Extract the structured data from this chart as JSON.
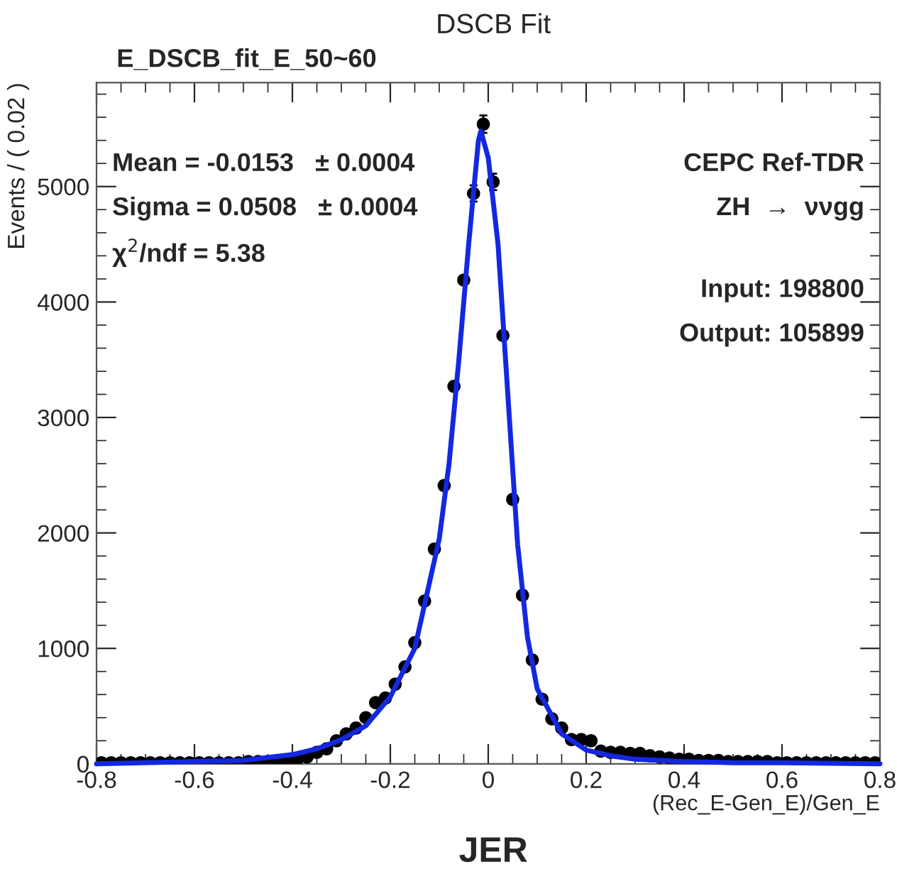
{
  "chart_data": {
    "type": "scatter",
    "title": "DSCB Fit",
    "subtitle": "E_DSCB_fit_E_50~60",
    "xlabel": "(Rec_E-Gen_E)/Gen_E",
    "ylabel": "Events / ( 0.02 )",
    "annotations": [
      "Mean = -0.0153   ± 0.0004",
      "Sigma = 0.0508   ± 0.0004",
      "χ$^{2}$/ndf = 5.38",
      "CEPC Ref-TDR",
      "ZH  →  ννgg",
      "Input: 198800",
      "Output: 105899",
      "JER"
    ],
    "xlim": [
      -0.8,
      0.8
    ],
    "ylim": [
      0,
      5900
    ],
    "xticks": [
      -0.8,
      -0.6,
      -0.4,
      -0.2,
      0,
      0.2,
      0.4,
      0.6,
      0.8
    ],
    "yticks": [
      0,
      1000,
      2000,
      3000,
      4000,
      5000
    ],
    "grid": false,
    "series": [
      {
        "color": "#000000",
        "marker": "circle",
        "x": [
          -0.79,
          -0.77,
          -0.75,
          -0.73,
          -0.71,
          -0.69,
          -0.67,
          -0.65,
          -0.63,
          -0.61,
          -0.59,
          -0.57,
          -0.55,
          -0.53,
          -0.51,
          -0.49,
          -0.47,
          -0.45,
          -0.43,
          -0.41,
          -0.39,
          -0.37,
          -0.35,
          -0.33,
          -0.31,
          -0.29,
          -0.27,
          -0.25,
          -0.23,
          -0.21,
          -0.19,
          -0.17,
          -0.15,
          -0.13,
          -0.11,
          -0.09,
          -0.07,
          -0.05,
          -0.03,
          -0.01,
          0.01,
          0.03,
          0.05,
          0.07,
          0.09,
          0.11,
          0.13,
          0.15,
          0.17,
          0.19,
          0.21,
          0.23,
          0.25,
          0.27,
          0.29,
          0.31,
          0.33,
          0.35,
          0.37,
          0.39,
          0.41,
          0.43,
          0.45,
          0.47,
          0.49,
          0.51,
          0.53,
          0.55,
          0.57,
          0.59,
          0.61,
          0.63,
          0.65,
          0.67,
          0.69,
          0.71,
          0.73,
          0.75,
          0.77,
          0.79
        ],
        "values": [
          10,
          10,
          10,
          10,
          10,
          10,
          10,
          10,
          10,
          10,
          10,
          10,
          10,
          10,
          10,
          20,
          20,
          20,
          20,
          30,
          40,
          60,
          100,
          130,
          200,
          260,
          310,
          400,
          530,
          570,
          690,
          840,
          1050,
          1410,
          1860,
          2410,
          3270,
          4190,
          4940,
          5540,
          5040,
          3710,
          2290,
          1460,
          900,
          560,
          390,
          310,
          210,
          210,
          200,
          110,
          100,
          100,
          90,
          90,
          70,
          60,
          50,
          40,
          40,
          30,
          30,
          30,
          20,
          20,
          20,
          20,
          20,
          10,
          10,
          10,
          10,
          10,
          10,
          10,
          10,
          10,
          10,
          10
        ],
        "errors": [
          null,
          null,
          null,
          null,
          null,
          null,
          null,
          null,
          null,
          null,
          null,
          null,
          null,
          null,
          null,
          null,
          null,
          null,
          null,
          null,
          null,
          null,
          null,
          null,
          null,
          null,
          null,
          null,
          null,
          null,
          null,
          null,
          null,
          null,
          null,
          null,
          null,
          null,
          70,
          75,
          71,
          null,
          null,
          null,
          null,
          null,
          null,
          null,
          null,
          null,
          null,
          null,
          null,
          null,
          null,
          null,
          null,
          null,
          null,
          null,
          null,
          null,
          null,
          null,
          null,
          null,
          null,
          null,
          null,
          null,
          null,
          null,
          null,
          null,
          null,
          null,
          null,
          null,
          null,
          null
        ]
      },
      {
        "type": "line",
        "color": "#1428e0",
        "line_style": "solid",
        "marker": "none",
        "x": [
          -0.8,
          -0.6,
          -0.5,
          -0.4,
          -0.35,
          -0.3,
          -0.25,
          -0.2,
          -0.15,
          -0.1,
          -0.08,
          -0.06,
          -0.04,
          -0.02,
          -0.015,
          0.0,
          0.02,
          0.04,
          0.06,
          0.08,
          0.1,
          0.15,
          0.2,
          0.25,
          0.3,
          0.4,
          0.5,
          0.6,
          0.8
        ],
        "values": [
          0,
          20,
          30,
          80,
          130,
          210,
          330,
          580,
          1000,
          1950,
          2600,
          3500,
          4500,
          5400,
          5480,
          5250,
          4500,
          3200,
          1900,
          1100,
          650,
          260,
          120,
          70,
          40,
          20,
          10,
          10,
          0
        ]
      }
    ]
  }
}
